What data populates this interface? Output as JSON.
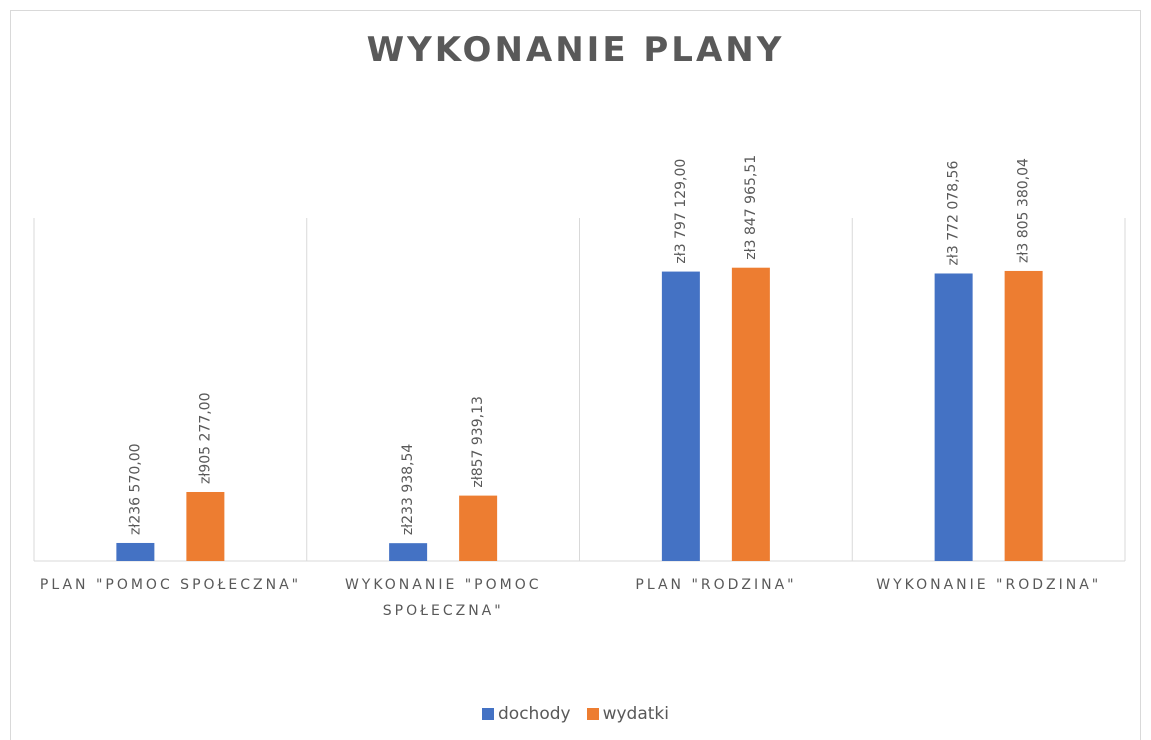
{
  "chart_data": {
    "type": "bar",
    "title": "WYKONANIE PLANY",
    "categories": [
      "PLAN \"POMOC SPOŁECZNA\"",
      "WYKONANIE \"POMOC SPOŁECZNA\"",
      "PLAN \"RODZINA\"",
      "WYKONANIE \"RODZINA\""
    ],
    "series": [
      {
        "name": "dochody",
        "color": "#4472c4",
        "values": [
          236570.0,
          233938.54,
          3797129.0,
          3772078.56
        ],
        "value_labels": [
          "zł236 570,00",
          "zł233 938,54",
          "zł3 797 129,00",
          "zł3 772 078,56"
        ]
      },
      {
        "name": "wydatki",
        "color": "#ed7d31",
        "values": [
          905277.0,
          857939.13,
          3847965.51,
          3805380.04
        ],
        "value_labels": [
          "zł905 277,00",
          "zł857 939,13",
          "zł3 847 965,51",
          "zł3 805 380,04"
        ]
      }
    ],
    "ylim": [
      0,
      4500000
    ],
    "grid": true,
    "legend": "bottom"
  }
}
